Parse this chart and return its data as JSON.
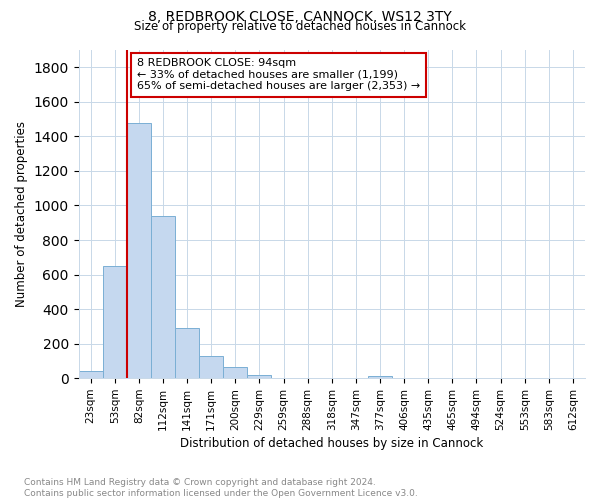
{
  "title": "8, REDBROOK CLOSE, CANNOCK, WS12 3TY",
  "subtitle": "Size of property relative to detached houses in Cannock",
  "xlabel": "Distribution of detached houses by size in Cannock",
  "ylabel": "Number of detached properties",
  "categories": [
    "23sqm",
    "53sqm",
    "82sqm",
    "112sqm",
    "141sqm",
    "171sqm",
    "200sqm",
    "229sqm",
    "259sqm",
    "288sqm",
    "318sqm",
    "347sqm",
    "377sqm",
    "406sqm",
    "435sqm",
    "465sqm",
    "494sqm",
    "524sqm",
    "553sqm",
    "583sqm",
    "612sqm"
  ],
  "bar_values": [
    40,
    650,
    1480,
    940,
    290,
    130,
    65,
    20,
    0,
    0,
    0,
    0,
    15,
    0,
    0,
    0,
    0,
    0,
    0,
    0,
    0
  ],
  "bar_color": "#c5d8ef",
  "bar_edge_color": "#7aafd4",
  "property_line_x": 2.0,
  "annotation_text": "8 REDBROOK CLOSE: 94sqm\n← 33% of detached houses are smaller (1,199)\n65% of semi-detached houses are larger (2,353) →",
  "annotation_box_color": "#cc0000",
  "ylim": [
    0,
    1900
  ],
  "yticks": [
    0,
    200,
    400,
    600,
    800,
    1000,
    1200,
    1400,
    1600,
    1800
  ],
  "footer_text": "Contains HM Land Registry data © Crown copyright and database right 2024.\nContains public sector information licensed under the Open Government Licence v3.0.",
  "bg_color": "#ffffff",
  "grid_color": "#c8d8e8"
}
